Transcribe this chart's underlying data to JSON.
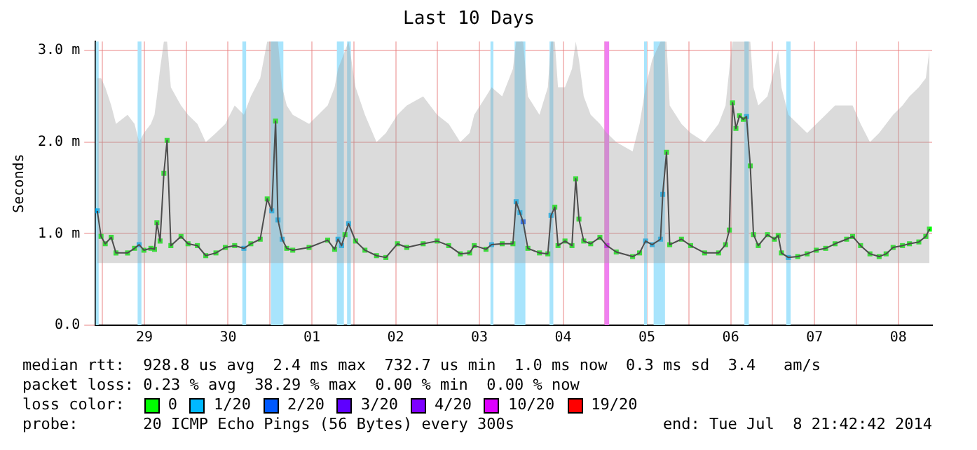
{
  "chart_data": {
    "type": "line",
    "title": "Last 10 Days",
    "ylabel": "Seconds",
    "legend_title": "loss color:",
    "legend": "bottom",
    "grid": true,
    "marker": "square",
    "xlim": [
      "2014-06-28T22:00",
      "2014-07-08T21:42"
    ],
    "xticks": [
      {
        "value": "2014-06-29T00:00",
        "label": null
      },
      {
        "value": "2014-06-29T12:00",
        "label": "29"
      },
      {
        "value": "2014-06-30T00:00",
        "label": null
      },
      {
        "value": "2014-06-30T12:00",
        "label": "30"
      },
      {
        "value": "2014-07-01T00:00",
        "label": null
      },
      {
        "value": "2014-07-01T12:00",
        "label": "01"
      },
      {
        "value": "2014-07-02T00:00",
        "label": null
      },
      {
        "value": "2014-07-02T12:00",
        "label": "02"
      },
      {
        "value": "2014-07-03T00:00",
        "label": null
      },
      {
        "value": "2014-07-03T12:00",
        "label": "03"
      },
      {
        "value": "2014-07-04T00:00",
        "label": null
      },
      {
        "value": "2014-07-04T12:00",
        "label": "04"
      },
      {
        "value": "2014-07-05T00:00",
        "label": null
      },
      {
        "value": "2014-07-05T12:00",
        "label": "05"
      },
      {
        "value": "2014-07-06T00:00",
        "label": null
      },
      {
        "value": "2014-07-06T12:00",
        "label": "06"
      },
      {
        "value": "2014-07-07T00:00",
        "label": null
      },
      {
        "value": "2014-07-07T12:00",
        "label": "07"
      },
      {
        "value": "2014-07-08T00:00",
        "label": null
      },
      {
        "value": "2014-07-08T12:00",
        "label": "08"
      }
    ],
    "ylim": [
      0,
      3.1
    ],
    "yticks": [
      {
        "value": 0,
        "label": "0.0"
      },
      {
        "value": 1,
        "label": "1.0 m"
      },
      {
        "value": 2,
        "label": "2.0 m"
      },
      {
        "value": 3,
        "label": "3.0 m"
      }
    ],
    "bands": [
      {
        "axis": "x",
        "from": "2014-06-28T22:05",
        "to": "2014-06-28T22:55",
        "color": "#a8e4fc"
      },
      {
        "axis": "x",
        "from": "2014-06-29T10:05",
        "to": "2014-06-29T11:10",
        "color": "#a8e4fc"
      },
      {
        "axis": "x",
        "from": "2014-06-30T16:05",
        "to": "2014-06-30T17:10",
        "color": "#a8e4fc"
      },
      {
        "axis": "x",
        "from": "2014-07-01T00:15",
        "to": "2014-07-01T03:50",
        "color": "#a8e4fc"
      },
      {
        "axis": "x",
        "from": "2014-07-01T19:10",
        "to": "2014-07-01T21:10",
        "color": "#a8e4fc"
      },
      {
        "axis": "x",
        "from": "2014-07-01T22:05",
        "to": "2014-07-01T23:10",
        "color": "#a8e4fc"
      },
      {
        "axis": "x",
        "from": "2014-07-03T15:10",
        "to": "2014-07-03T16:00",
        "color": "#a8e4fc"
      },
      {
        "axis": "x",
        "from": "2014-07-03T22:05",
        "to": "2014-07-04T01:10",
        "color": "#a8e4fc"
      },
      {
        "axis": "x",
        "from": "2014-07-04T08:05",
        "to": "2014-07-04T09:10",
        "color": "#a8e4fc"
      },
      {
        "axis": "x",
        "from": "2014-07-04T23:50",
        "to": "2014-07-05T01:10",
        "color": "#f080f0"
      },
      {
        "axis": "x",
        "from": "2014-07-05T11:10",
        "to": "2014-07-05T12:00",
        "color": "#a8e4fc"
      },
      {
        "axis": "x",
        "from": "2014-07-05T13:55",
        "to": "2014-07-05T17:10",
        "color": "#a8e4fc"
      },
      {
        "axis": "x",
        "from": "2014-07-06T15:55",
        "to": "2014-07-06T17:10",
        "color": "#a8e4fc"
      },
      {
        "axis": "x",
        "from": "2014-07-07T03:55",
        "to": "2014-07-07T05:10",
        "color": "#a8e4fc"
      }
    ],
    "series": [
      {
        "type": "line",
        "color": "#1a1a1a",
        "marker": "none",
        "x": [
          "2014-06-28T22:31",
          "2014-06-28T23:36",
          "2014-06-29T00:48",
          "2014-06-29T02:31",
          "2014-06-29T03:53",
          "2014-06-29T07:12",
          "2014-06-29T09:12",
          "2014-06-29T10:31",
          "2014-06-29T11:53",
          "2014-06-29T13:53",
          "2014-06-29T14:55",
          "2014-06-29T15:36",
          "2014-06-29T16:31",
          "2014-06-29T17:36",
          "2014-06-29T18:31",
          "2014-06-29T19:36",
          "2014-06-29T22:31",
          "2014-06-30T00:31",
          "2014-06-30T03:12",
          "2014-06-30T05:36",
          "2014-06-30T08:31",
          "2014-06-30T11:12",
          "2014-06-30T13:53",
          "2014-06-30T16:31",
          "2014-06-30T18:31",
          "2014-06-30T21:12",
          "2014-06-30T23:12",
          "2014-07-01T00:31",
          "2014-07-01T01:36",
          "2014-07-01T02:17",
          "2014-07-01T03:29",
          "2014-07-01T04:48",
          "2014-07-01T06:31",
          "2014-07-01T11:12",
          "2014-07-01T16:31",
          "2014-07-01T18:31",
          "2014-07-01T19:29",
          "2014-07-01T20:31",
          "2014-07-01T21:29",
          "2014-07-01T22:31",
          "2014-07-02T00:31",
          "2014-07-02T03:12",
          "2014-07-02T06:31",
          "2014-07-02T09:12",
          "2014-07-02T12:31",
          "2014-07-02T15:12",
          "2014-07-02T19:53",
          "2014-07-02T23:53",
          "2014-07-03T03:12",
          "2014-07-03T06:31",
          "2014-07-03T09:12",
          "2014-07-03T10:31",
          "2014-07-03T13:53",
          "2014-07-03T15:29",
          "2014-07-03T18:31",
          "2014-07-03T21:36",
          "2014-07-03T22:31",
          "2014-07-03T23:36",
          "2014-07-04T00:31",
          "2014-07-04T01:53",
          "2014-07-04T05:12",
          "2014-07-04T07:36",
          "2014-07-04T08:31",
          "2014-07-04T09:36",
          "2014-07-04T10:31",
          "2014-07-04T12:31",
          "2014-07-04T14:31",
          "2014-07-04T15:36",
          "2014-07-04T16:31",
          "2014-07-04T17:53",
          "2014-07-04T19:53",
          "2014-07-04T22:31",
          "2014-07-05T00:31",
          "2014-07-05T03:12",
          "2014-07-05T07:53",
          "2014-07-05T09:53",
          "2014-07-05T11:36",
          "2014-07-05T13:29",
          "2014-07-05T15:53",
          "2014-07-05T16:31",
          "2014-07-05T17:36",
          "2014-07-05T18:31",
          "2014-07-05T21:53",
          "2014-07-06T00:31",
          "2014-07-06T04:31",
          "2014-07-06T08:31",
          "2014-07-06T10:31",
          "2014-07-06T11:36",
          "2014-07-06T12:31",
          "2014-07-06T13:29",
          "2014-07-06T14:31",
          "2014-07-06T15:36",
          "2014-07-06T16:31",
          "2014-07-06T17:36",
          "2014-07-06T18:31",
          "2014-07-06T19:53",
          "2014-07-06T22:31",
          "2014-07-07T00:31",
          "2014-07-07T01:36",
          "2014-07-07T02:31",
          "2014-07-07T04:31",
          "2014-07-07T07:12",
          "2014-07-07T09:53",
          "2014-07-07T12:31",
          "2014-07-07T15:12",
          "2014-07-07T17:53",
          "2014-07-07T21:12",
          "2014-07-07T22:55",
          "2014-07-08T01:12",
          "2014-07-08T03:53",
          "2014-07-08T06:31",
          "2014-07-08T08:31",
          "2014-07-08T10:31",
          "2014-07-08T13:12",
          "2014-07-08T15:12",
          "2014-07-08T17:53",
          "2014-07-08T19:53",
          "2014-07-08T20:55"
        ],
        "values": [
          1.25,
          0.97,
          0.89,
          0.96,
          0.79,
          0.79,
          0.84,
          0.88,
          0.82,
          0.84,
          0.83,
          1.12,
          0.92,
          1.66,
          2.02,
          0.87,
          0.97,
          0.89,
          0.87,
          0.76,
          0.79,
          0.85,
          0.87,
          0.84,
          0.89,
          0.94,
          1.38,
          1.25,
          2.23,
          1.15,
          0.94,
          0.84,
          0.82,
          0.85,
          0.93,
          0.83,
          0.94,
          0.87,
          0.99,
          1.11,
          0.92,
          0.82,
          0.76,
          0.74,
          0.89,
          0.85,
          0.89,
          0.92,
          0.87,
          0.78,
          0.79,
          0.87,
          0.83,
          0.88,
          0.89,
          0.89,
          1.35,
          1.23,
          1.13,
          0.84,
          0.79,
          0.78,
          1.2,
          1.29,
          0.87,
          0.92,
          0.87,
          1.6,
          1.16,
          0.92,
          0.89,
          0.96,
          0.87,
          0.8,
          0.75,
          0.79,
          0.92,
          0.88,
          0.94,
          1.43,
          1.89,
          0.88,
          0.94,
          0.87,
          0.79,
          0.79,
          0.88,
          1.04,
          2.43,
          2.15,
          2.29,
          2.25,
          2.28,
          1.74,
          0.99,
          0.87,
          0.99,
          0.94,
          0.98,
          0.79,
          0.74,
          0.75,
          0.78,
          0.82,
          0.84,
          0.89,
          0.94,
          0.97,
          0.87,
          0.78,
          0.75,
          0.78,
          0.85,
          0.87,
          0.89,
          0.91,
          0.97,
          1.05
        ],
        "lower": [
          0.68,
          0.68,
          0.68,
          0.68,
          0.68,
          0.68,
          0.68,
          0.68,
          0.68,
          0.68,
          0.68,
          0.68,
          0.68,
          0.68,
          0.68,
          0.68,
          0.68,
          0.68,
          0.68,
          0.68,
          0.68,
          0.68,
          0.68,
          0.68,
          0.68,
          0.68,
          0.68,
          0.68,
          0.68,
          0.68,
          0.68,
          0.68,
          0.68,
          0.68,
          0.68,
          0.68,
          0.68,
          0.68,
          0.68,
          0.68,
          0.68,
          0.68,
          0.68,
          0.68,
          0.68,
          0.68,
          0.68,
          0.68,
          0.68,
          0.68,
          0.68,
          0.68,
          0.68,
          0.68,
          0.68,
          0.68,
          0.68,
          0.68,
          0.68,
          0.68,
          0.68,
          0.68,
          0.68,
          0.68,
          0.68,
          0.68,
          0.68,
          0.68,
          0.68,
          0.68,
          0.68,
          0.68,
          0.68,
          0.68,
          0.68,
          0.68,
          0.68,
          0.68,
          0.68,
          0.68,
          0.68,
          0.68,
          0.68,
          0.68,
          0.68,
          0.68,
          0.68,
          0.68,
          0.68,
          0.68,
          0.68,
          0.68,
          0.68,
          0.68,
          0.68,
          0.68,
          0.68,
          0.68,
          0.68,
          0.68,
          0.68,
          0.68,
          0.68,
          0.68,
          0.68,
          0.68,
          0.68,
          0.68,
          0.68,
          0.68,
          0.68,
          0.68,
          0.68,
          0.68,
          0.68,
          0.68,
          0.68,
          0.68
        ],
        "upper": [
          2.7,
          2.7,
          2.6,
          2.4,
          2.2,
          2.3,
          2.2,
          2.0,
          2.1,
          2.2,
          2.3,
          2.5,
          2.8,
          3.1,
          3.1,
          2.6,
          2.4,
          2.3,
          2.2,
          2.0,
          2.1,
          2.2,
          2.4,
          2.3,
          2.5,
          2.7,
          3.1,
          3.1,
          3.1,
          3.1,
          2.6,
          2.4,
          2.3,
          2.2,
          2.4,
          2.6,
          2.8,
          2.9,
          3.0,
          3.1,
          2.6,
          2.3,
          2.0,
          2.1,
          2.3,
          2.4,
          2.5,
          2.3,
          2.2,
          2.0,
          2.1,
          2.3,
          2.5,
          2.6,
          2.5,
          2.8,
          3.1,
          3.1,
          3.1,
          2.5,
          2.3,
          2.6,
          3.1,
          3.1,
          2.6,
          2.6,
          2.8,
          3.1,
          2.9,
          2.5,
          2.3,
          2.2,
          2.1,
          2.0,
          1.9,
          2.2,
          2.6,
          2.9,
          3.1,
          3.1,
          3.1,
          2.4,
          2.2,
          2.1,
          2.0,
          2.2,
          2.4,
          2.8,
          3.1,
          3.1,
          3.1,
          3.1,
          3.1,
          3.1,
          2.6,
          2.4,
          2.5,
          2.8,
          3.0,
          2.6,
          2.3,
          2.2,
          2.1,
          2.2,
          2.3,
          2.4,
          2.4,
          2.4,
          2.2,
          2.0,
          2.1,
          2.2,
          2.3,
          2.4,
          2.5,
          2.6,
          2.7,
          3.0
        ]
      },
      {
        "name": "0",
        "type": "scatter",
        "color": "#00ff00",
        "x": [
          "2014-06-28T23:36",
          "2014-06-29T00:48",
          "2014-06-29T02:31",
          "2014-06-29T03:53",
          "2014-06-29T07:12",
          "2014-06-29T09:12",
          "2014-06-29T11:53",
          "2014-06-29T13:53",
          "2014-06-29T14:55",
          "2014-06-29T15:36",
          "2014-06-29T16:31",
          "2014-06-29T17:36",
          "2014-06-29T18:31",
          "2014-06-29T19:36",
          "2014-06-29T22:31",
          "2014-06-30T00:31",
          "2014-06-30T03:12",
          "2014-06-30T05:36",
          "2014-06-30T08:31",
          "2014-06-30T11:12",
          "2014-06-30T13:53",
          "2014-06-30T18:31",
          "2014-06-30T21:12",
          "2014-06-30T23:12",
          "2014-07-01T01:36",
          "2014-07-01T04:48",
          "2014-07-01T06:31",
          "2014-07-01T11:12",
          "2014-07-01T16:31",
          "2014-07-01T18:31",
          "2014-07-01T21:29",
          "2014-07-02T00:31",
          "2014-07-02T03:12",
          "2014-07-02T06:31",
          "2014-07-02T09:12",
          "2014-07-02T12:31",
          "2014-07-02T15:12",
          "2014-07-02T19:53",
          "2014-07-02T23:53",
          "2014-07-03T03:12",
          "2014-07-03T06:31",
          "2014-07-03T09:12",
          "2014-07-03T10:31",
          "2014-07-03T13:53",
          "2014-07-03T18:31",
          "2014-07-03T21:36",
          "2014-07-04T01:53",
          "2014-07-04T05:12",
          "2014-07-04T07:36",
          "2014-07-04T09:36",
          "2014-07-04T10:31",
          "2014-07-04T12:31",
          "2014-07-04T14:31",
          "2014-07-04T15:36",
          "2014-07-04T16:31",
          "2014-07-04T17:53",
          "2014-07-04T19:53",
          "2014-07-04T22:31",
          "2014-07-05T03:12",
          "2014-07-05T07:53",
          "2014-07-05T09:53",
          "2014-07-05T17:36",
          "2014-07-05T18:31",
          "2014-07-05T21:53",
          "2014-07-06T00:31",
          "2014-07-06T04:31",
          "2014-07-06T08:31",
          "2014-07-06T10:31",
          "2014-07-06T11:36",
          "2014-07-06T12:31",
          "2014-07-06T13:29",
          "2014-07-06T14:31",
          "2014-07-06T15:36",
          "2014-07-06T17:36",
          "2014-07-06T18:31",
          "2014-07-06T19:53",
          "2014-07-06T22:31",
          "2014-07-07T00:31",
          "2014-07-07T01:36",
          "2014-07-07T02:31",
          "2014-07-07T07:12",
          "2014-07-07T09:53",
          "2014-07-07T12:31",
          "2014-07-07T15:12",
          "2014-07-07T17:53",
          "2014-07-07T21:12",
          "2014-07-07T22:55",
          "2014-07-08T01:12",
          "2014-07-08T03:53",
          "2014-07-08T06:31",
          "2014-07-08T08:31",
          "2014-07-08T10:31",
          "2014-07-08T13:12",
          "2014-07-08T15:12",
          "2014-07-08T17:53",
          "2014-07-08T19:53",
          "2014-07-08T20:55"
        ],
        "values": [
          0.97,
          0.89,
          0.96,
          0.79,
          0.79,
          0.84,
          0.82,
          0.84,
          0.83,
          1.12,
          0.92,
          1.66,
          2.02,
          0.87,
          0.97,
          0.89,
          0.87,
          0.76,
          0.79,
          0.85,
          0.87,
          0.89,
          0.94,
          1.38,
          2.23,
          0.84,
          0.82,
          0.85,
          0.93,
          0.83,
          0.99,
          0.92,
          0.82,
          0.76,
          0.74,
          0.89,
          0.85,
          0.89,
          0.92,
          0.87,
          0.78,
          0.79,
          0.87,
          0.83,
          0.89,
          0.89,
          0.84,
          0.79,
          0.78,
          1.29,
          0.87,
          0.92,
          0.87,
          1.6,
          1.16,
          0.92,
          0.89,
          0.96,
          0.8,
          0.75,
          0.79,
          1.89,
          0.88,
          0.94,
          0.87,
          0.79,
          0.79,
          0.88,
          1.04,
          2.43,
          2.15,
          2.29,
          2.25,
          1.74,
          0.99,
          0.87,
          0.99,
          0.94,
          0.98,
          0.79,
          0.75,
          0.78,
          0.82,
          0.84,
          0.89,
          0.94,
          0.97,
          0.87,
          0.78,
          0.75,
          0.78,
          0.85,
          0.87,
          0.89,
          0.91,
          0.97,
          1.05
        ]
      },
      {
        "name": "1/20",
        "type": "scatter",
        "color": "#00b8ff",
        "x": [
          "2014-06-28T22:31",
          "2014-06-29T10:31",
          "2014-06-30T16:31",
          "2014-07-01T00:31",
          "2014-07-01T02:17",
          "2014-07-01T03:29",
          "2014-07-01T19:29",
          "2014-07-01T20:31",
          "2014-07-01T22:31",
          "2014-07-03T15:29",
          "2014-07-03T22:31",
          "2014-07-03T23:36",
          "2014-07-04T08:31",
          "2014-07-05T11:36",
          "2014-07-05T13:29",
          "2014-07-05T15:53",
          "2014-07-05T16:31",
          "2014-07-06T16:31",
          "2014-07-07T04:31"
        ],
        "values": [
          1.25,
          0.88,
          0.84,
          1.25,
          1.15,
          0.94,
          0.94,
          0.87,
          1.11,
          0.88,
          1.35,
          1.23,
          1.2,
          0.92,
          0.88,
          0.94,
          1.43,
          2.28,
          0.74
        ]
      },
      {
        "name": "2/20",
        "type": "scatter",
        "color": "#0059ff",
        "x": [
          "2014-07-04T00:31"
        ],
        "values": [
          1.13
        ]
      },
      {
        "name": "3/20",
        "type": "scatter",
        "color": "#5e00ff"
      },
      {
        "name": "4/20",
        "type": "scatter",
        "color": "#7e00ff"
      },
      {
        "name": "10/20",
        "type": "scatter",
        "color": "#dd00ff",
        "x": [
          "2014-07-05T00:31"
        ],
        "values": [
          0.87
        ]
      },
      {
        "name": "19/20",
        "type": "scatter",
        "color": "#ff0000"
      }
    ],
    "annotations": [
      "median rtt:  928.8 us avg  2.4 ms max  732.7 us min  1.0 ms now  0.3 ms sd  3.4   am/s",
      "packet loss: 0.23 % avg  38.29 % max  0.00 % min  0.00 % now",
      "probe:       20 ICMP Echo Pings (56 Bytes) every 300s",
      "end: Tue Jul  8 21:42:42 2014"
    ]
  }
}
